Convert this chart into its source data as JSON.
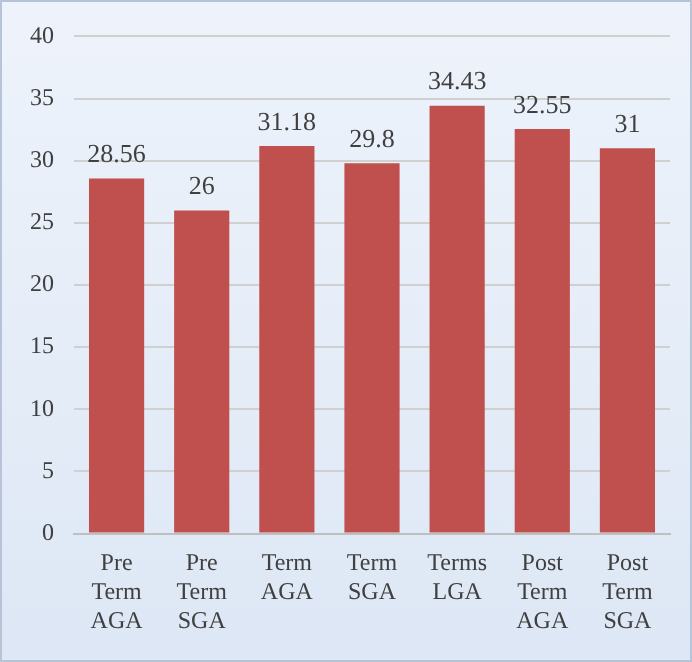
{
  "chart_data": {
    "type": "bar",
    "categories": [
      "Pre Term AGA",
      "Pre Term SGA",
      "Term AGA",
      "Term SGA",
      "Terms LGA",
      "Post Term AGA",
      "Post Term SGA"
    ],
    "values": [
      28.56,
      26,
      31.18,
      29.8,
      34.43,
      32.55,
      31
    ],
    "color": "#c0504d",
    "ylim": [
      0,
      40
    ],
    "yticks": [
      0,
      5,
      10,
      15,
      20,
      25,
      30,
      35,
      40
    ],
    "grid": "y",
    "data_labels": true
  }
}
